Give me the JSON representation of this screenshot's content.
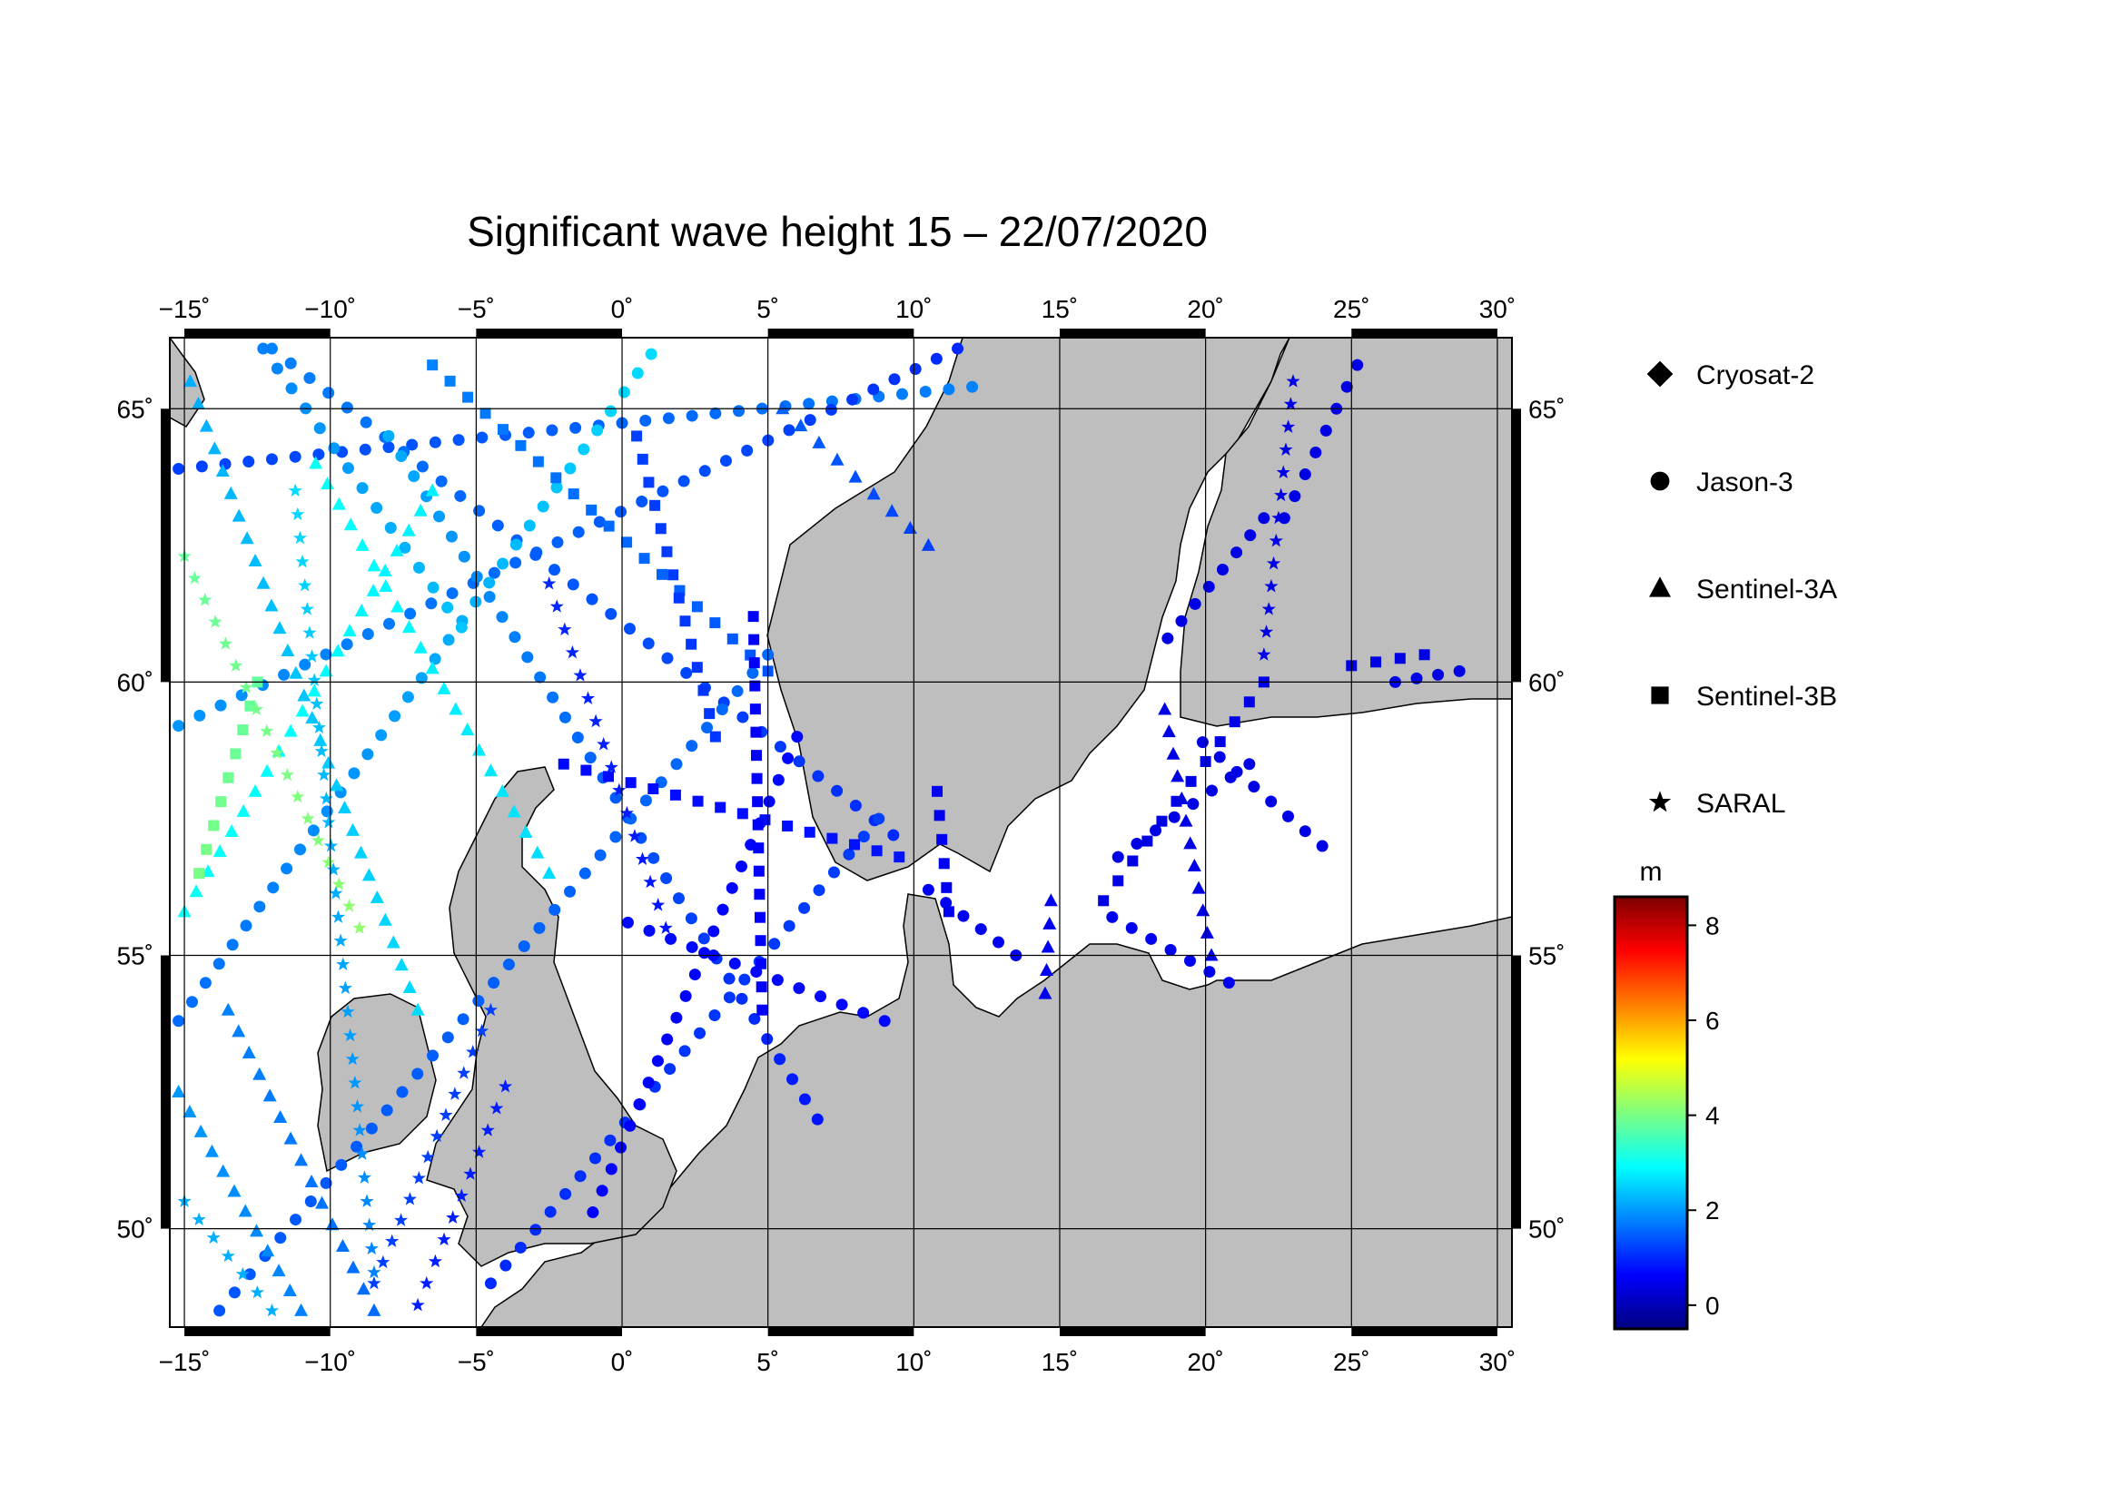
{
  "title": "Significant wave height 15 – 22/07/2020",
  "map": {
    "lon_min": -15.5,
    "lon_max": 30.5,
    "lat_min": 48.2,
    "lat_max": 66.3,
    "lon_ticks": [
      -15,
      -10,
      -5,
      0,
      5,
      10,
      15,
      20,
      25,
      30
    ],
    "lat_ticks": [
      50,
      55,
      60,
      65
    ],
    "lon_tick_labels": [
      "−15˚",
      "−10˚",
      "−5˚",
      "0˚",
      "5˚",
      "10˚",
      "15˚",
      "20˚",
      "25˚",
      "30˚"
    ],
    "lat_tick_labels": [
      "50˚",
      "55˚",
      "60˚",
      "65˚"
    ],
    "grid": true,
    "land_color": "#bebebe",
    "sea_color": "#ffffff"
  },
  "legend": {
    "items": [
      {
        "label": "Cryosat-2",
        "symbol": "diamond"
      },
      {
        "label": "Jason-3",
        "symbol": "circle"
      },
      {
        "label": "Sentinel-3A",
        "symbol": "triangle"
      },
      {
        "label": "Sentinel-3B",
        "symbol": "square"
      },
      {
        "label": "SARAL",
        "symbol": "star"
      }
    ]
  },
  "colorbar": {
    "unit": "m",
    "min": -0.5,
    "max": 8.6,
    "ticks": [
      0,
      2,
      4,
      6,
      8
    ],
    "tick_labels": [
      "0",
      "2",
      "4",
      "6",
      "8"
    ],
    "colors": [
      "#00007f",
      "#0000ff",
      "#007fff",
      "#00ffff",
      "#7fff7f",
      "#ffff00",
      "#ff7f00",
      "#ff0000",
      "#7f0000"
    ]
  },
  "chart_data": {
    "type": "scatter",
    "title": "Significant wave height 15 – 22/07/2020",
    "x_unit": "degrees longitude",
    "y_unit": "degrees latitude",
    "value_unit": "m",
    "xlim": [
      -15.5,
      30.5
    ],
    "ylim": [
      48.2,
      66.3
    ],
    "series": [
      {
        "name": "Jason-3",
        "symbol": "circle",
        "tracks": [
          {
            "start": [
              -15.2,
              63.9
            ],
            "end": [
              12.0,
              65.4
            ],
            "hs": [
              1.2,
              1.8
            ]
          },
          {
            "start": [
              -15.2,
              59.2
            ],
            "end": [
              11.5,
              66.1
            ],
            "hs": [
              2.0,
              1.0
            ]
          },
          {
            "start": [
              -12.0,
              66.1
            ],
            "end": [
              9.3,
              57.2
            ],
            "hs": [
              1.8,
              1.0
            ]
          },
          {
            "start": [
              -8.0,
              64.5
            ],
            "end": [
              6.7,
              52.0
            ],
            "hs": [
              2.2,
              0.8
            ]
          },
          {
            "start": [
              -15.2,
              53.8
            ],
            "end": [
              1.0,
              66.0
            ],
            "hs": [
              1.6,
              2.6
            ]
          },
          {
            "start": [
              -13.8,
              48.5
            ],
            "end": [
              5.0,
              60.5
            ],
            "hs": [
              1.4,
              1.6
            ]
          },
          {
            "start": [
              -4.5,
              49.0
            ],
            "end": [
              8.8,
              57.5
            ],
            "hs": [
              1.0,
              1.2
            ]
          },
          {
            "start": [
              -12.3,
              66.1
            ],
            "end": [
              -5.5,
              61.0
            ],
            "hs": [
              1.8,
              2.4
            ]
          },
          {
            "start": [
              -1.0,
              50.3
            ],
            "end": [
              6.0,
              59.0
            ],
            "hs": [
              0.6,
              0.7
            ]
          },
          {
            "start": [
              0.2,
              55.6
            ],
            "end": [
              9.0,
              53.8
            ],
            "hs": [
              0.7,
              0.7
            ]
          },
          {
            "start": [
              10.5,
              56.2
            ],
            "end": [
              13.5,
              55.0
            ],
            "hs": [
              0.5,
              0.5
            ]
          },
          {
            "start": [
              16.8,
              55.7
            ],
            "end": [
              20.8,
              54.5
            ],
            "hs": [
              0.5,
              0.5
            ]
          },
          {
            "start": [
              18.7,
              60.8
            ],
            "end": [
              22.0,
              63.0
            ],
            "hs": [
              0.4,
              0.4
            ]
          },
          {
            "start": [
              22.7,
              63.0
            ],
            "end": [
              25.2,
              65.8
            ],
            "hs": [
              0.4,
              0.4
            ]
          },
          {
            "start": [
              19.9,
              58.9
            ],
            "end": [
              24.0,
              57.0
            ],
            "hs": [
              0.4,
              0.4
            ]
          },
          {
            "start": [
              26.5,
              60.0
            ],
            "end": [
              28.7,
              60.2
            ],
            "hs": [
              0.4,
              0.4
            ]
          },
          {
            "start": [
              17.0,
              56.8
            ],
            "end": [
              21.5,
              58.5
            ],
            "hs": [
              0.4,
              0.4
            ]
          }
        ]
      },
      {
        "name": "Sentinel-3A",
        "symbol": "triangle",
        "tracks": [
          {
            "start": [
              -14.8,
              65.5
            ],
            "end": [
              -7.0,
              54.0
            ],
            "hs": [
              2.2,
              2.6
            ]
          },
          {
            "start": [
              -10.5,
              64.0
            ],
            "end": [
              -2.5,
              56.5
            ],
            "hs": [
              3.0,
              2.6
            ]
          },
          {
            "start": [
              -15.0,
              55.8
            ],
            "end": [
              -6.5,
              63.5
            ],
            "hs": [
              3.0,
              2.8
            ]
          },
          {
            "start": [
              -15.2,
              52.5
            ],
            "end": [
              -11.0,
              48.5
            ],
            "hs": [
              2.0,
              1.8
            ]
          },
          {
            "start": [
              -13.5,
              54.0
            ],
            "end": [
              -8.5,
              48.5
            ],
            "hs": [
              1.8,
              1.6
            ]
          },
          {
            "start": [
              5.5,
              65.0
            ],
            "end": [
              10.5,
              62.5
            ],
            "hs": [
              1.5,
              1.2
            ]
          },
          {
            "start": [
              14.7,
              56.0
            ],
            "end": [
              14.5,
              54.3
            ],
            "hs": [
              0.5,
              0.5
            ]
          },
          {
            "start": [
              18.6,
              59.5
            ],
            "end": [
              20.2,
              55.0
            ],
            "hs": [
              0.4,
              0.4
            ]
          }
        ]
      },
      {
        "name": "Sentinel-3B",
        "symbol": "square",
        "tracks": [
          {
            "start": [
              -6.5,
              65.8
            ],
            "end": [
              5.0,
              60.2
            ],
            "hs": [
              1.8,
              1.4
            ]
          },
          {
            "start": [
              -2.0,
              58.5
            ],
            "end": [
              9.5,
              56.8
            ],
            "hs": [
              0.7,
              0.8
            ]
          },
          {
            "start": [
              -14.5,
              56.5
            ],
            "end": [
              -12.5,
              60.0
            ],
            "hs": [
              4.0,
              3.8
            ]
          },
          {
            "start": [
              4.5,
              61.2
            ],
            "end": [
              4.8,
              54.0
            ],
            "hs": [
              0.6,
              0.6
            ]
          },
          {
            "start": [
              0.5,
              64.5
            ],
            "end": [
              3.2,
              59.0
            ],
            "hs": [
              1.2,
              1.1
            ]
          },
          {
            "start": [
              10.8,
              58.0
            ],
            "end": [
              11.2,
              55.8
            ],
            "hs": [
              0.5,
              0.5
            ]
          },
          {
            "start": [
              16.5,
              56.0
            ],
            "end": [
              22.0,
              60.0
            ],
            "hs": [
              0.4,
              0.4
            ]
          },
          {
            "start": [
              25.0,
              60.3
            ],
            "end": [
              27.5,
              60.5
            ],
            "hs": [
              0.4,
              0.4
            ]
          }
        ]
      },
      {
        "name": "SARAL",
        "symbol": "star",
        "tracks": [
          {
            "start": [
              -15.0,
              62.3
            ],
            "end": [
              -9.0,
              55.5
            ],
            "hs": [
              3.8,
              4.2
            ]
          },
          {
            "start": [
              -11.2,
              63.5
            ],
            "end": [
              -8.5,
              49.2
            ],
            "hs": [
              2.6,
              1.8
            ]
          },
          {
            "start": [
              -8.5,
              49.0
            ],
            "end": [
              -4.5,
              54.0
            ],
            "hs": [
              1.2,
              1.2
            ]
          },
          {
            "start": [
              -2.5,
              61.8
            ],
            "end": [
              1.5,
              55.5
            ],
            "hs": [
              1.0,
              0.8
            ]
          },
          {
            "start": [
              -15.0,
              50.5
            ],
            "end": [
              -12.0,
              48.5
            ],
            "hs": [
              2.2,
              2.2
            ]
          },
          {
            "start": [
              -7.0,
              48.6
            ],
            "end": [
              -4.0,
              52.6
            ],
            "hs": [
              0.9,
              0.9
            ]
          },
          {
            "start": [
              23.0,
              65.5
            ],
            "end": [
              22.0,
              60.5
            ],
            "hs": [
              0.4,
              0.4
            ]
          }
        ]
      },
      {
        "name": "Cryosat-2",
        "symbol": "diamond",
        "tracks": []
      }
    ]
  }
}
